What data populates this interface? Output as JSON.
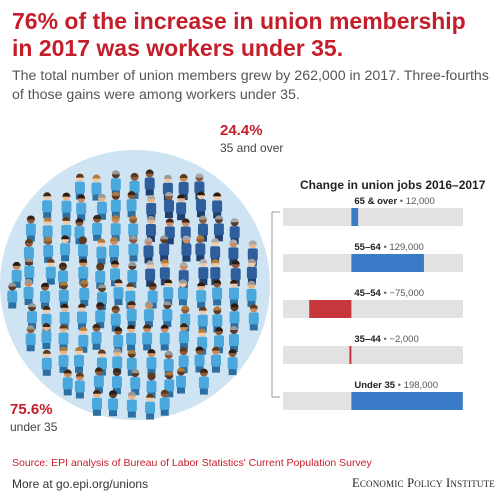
{
  "title": "76% of the increase in union membership in 2017 was workers under 35.",
  "subtitle": "The total number of union members grew by 262,000 in 2017. Three-fourths of those gains were among workers under 35.",
  "colors": {
    "accent": "#c41e2a",
    "positive": "#3a7bc8",
    "negative": "#c8363d",
    "track": "#e2e2e2",
    "pie_bg": "#cfe4f3",
    "people": "#4ba8dc"
  },
  "chart_data": [
    {
      "type": "pie",
      "slices": [
        {
          "percent": "24.4%",
          "label": "35 and over",
          "value": 24.4
        },
        {
          "percent": "75.6%",
          "label": "under 35",
          "value": 75.6
        }
      ]
    },
    {
      "type": "bar",
      "title": "Change in union jobs 2016–2017",
      "xlim": [
        -250000,
        250000
      ],
      "bars": [
        {
          "category": "65 & over",
          "value_label": "12,000",
          "value": 12000
        },
        {
          "category": "55–64",
          "value_label": "129,000",
          "value": 129000
        },
        {
          "category": "45–54",
          "value_label": "−75,000",
          "value": -75000
        },
        {
          "category": "35–44",
          "value_label": "−2,000",
          "value": -2000
        },
        {
          "category": "Under 35",
          "value_label": "198,000",
          "value": 198000
        }
      ]
    }
  ],
  "source": "Source: EPI analysis of Bureau of Labor Statistics' Current Population Survey",
  "more": "More at go.epi.org/unions",
  "publisher": "Economic Policy Institute"
}
